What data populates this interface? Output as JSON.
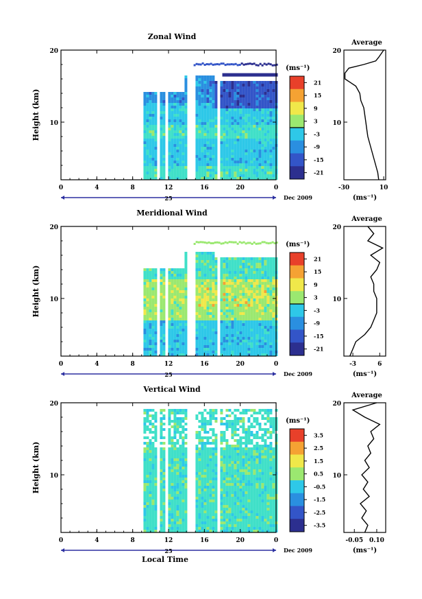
{
  "chart_data": [
    {
      "type": "heatmap",
      "title": "Zonal Wind",
      "ylabel": "Height (km)",
      "xlabel": "",
      "x_ticks": [
        "0",
        "4",
        "8",
        "12",
        "16",
        "20",
        "0"
      ],
      "y_ticks": [
        "10",
        "20"
      ],
      "date_labels": {
        "day": "25",
        "month_year": "Dec 2009"
      },
      "ylim": [
        2,
        20
      ],
      "xlim": [
        0,
        24
      ],
      "colorbar": {
        "unit_label": "(ms⁻¹)",
        "ticks": [
          "21",
          "15",
          "9",
          "3",
          "-3",
          "-9",
          "-15",
          "-21"
        ]
      },
      "average": {
        "title": "Average",
        "x_ticks": [
          "-30",
          "10"
        ],
        "y_ticks": [
          "10",
          "20"
        ],
        "unit_label": "(ms⁻¹)",
        "xlim": [
          -30,
          12
        ],
        "profile": [
          [
            5,
            2
          ],
          [
            4,
            3
          ],
          [
            2,
            4
          ],
          [
            0,
            5
          ],
          [
            -2,
            6
          ],
          [
            -4,
            7
          ],
          [
            -6,
            8
          ],
          [
            -7,
            9
          ],
          [
            -8,
            10
          ],
          [
            -9,
            11
          ],
          [
            -10,
            12
          ],
          [
            -13,
            13
          ],
          [
            -14,
            14
          ],
          [
            -18,
            15
          ],
          [
            -29,
            16
          ],
          [
            -29,
            16.8
          ],
          [
            -25,
            17.5
          ],
          [
            -10,
            18
          ],
          [
            2,
            18.5
          ],
          [
            5,
            19
          ],
          [
            10,
            20
          ]
        ]
      }
    },
    {
      "type": "heatmap",
      "title": "Meridional Wind",
      "ylabel": "Height (km)",
      "xlabel": "",
      "x_ticks": [
        "0",
        "4",
        "8",
        "12",
        "16",
        "20",
        "0"
      ],
      "y_ticks": [
        "10",
        "20"
      ],
      "date_labels": {
        "day": "25",
        "month_year": "Dec 2009"
      },
      "ylim": [
        2,
        20
      ],
      "xlim": [
        0,
        24
      ],
      "colorbar": {
        "unit_label": "(ms⁻¹)",
        "ticks": [
          "21",
          "15",
          "9",
          "3",
          "-3",
          "-9",
          "-15",
          "-21"
        ]
      },
      "average": {
        "title": "Average",
        "x_ticks": [
          "-3",
          "6"
        ],
        "y_ticks": [
          "10",
          "20"
        ],
        "unit_label": "(ms⁻¹)",
        "xlim": [
          -6,
          8
        ],
        "profile": [
          [
            -4,
            2
          ],
          [
            -3,
            3
          ],
          [
            -2,
            4
          ],
          [
            1,
            5
          ],
          [
            3,
            6
          ],
          [
            4,
            7
          ],
          [
            5,
            8
          ],
          [
            5,
            9
          ],
          [
            5,
            10
          ],
          [
            4,
            11
          ],
          [
            4,
            12
          ],
          [
            3,
            13
          ],
          [
            5,
            14
          ],
          [
            6,
            15
          ],
          [
            3,
            16
          ],
          [
            7,
            17
          ],
          [
            2,
            18
          ],
          [
            4,
            19
          ],
          [
            2,
            20
          ]
        ]
      }
    },
    {
      "type": "heatmap",
      "title": "Vertical Wind",
      "ylabel": "Height (km)",
      "xlabel": "Local Time",
      "x_ticks": [
        "0",
        "4",
        "8",
        "12",
        "16",
        "20",
        "0"
      ],
      "y_ticks": [
        "10",
        "20"
      ],
      "date_labels": {
        "day": "25",
        "month_year": "Dec 2009"
      },
      "ylim": [
        2,
        20
      ],
      "xlim": [
        0,
        24
      ],
      "colorbar": {
        "unit_label": "(ms⁻¹)",
        "ticks": [
          "3.5",
          "2.5",
          "1.5",
          "0.5",
          "-0.5",
          "-1.5",
          "-2.5",
          "-3.5"
        ]
      },
      "average": {
        "title": "Average",
        "x_ticks": [
          "-0.05",
          "0.10"
        ],
        "y_ticks": [
          "10",
          "20"
        ],
        "unit_label": "(ms⁻¹)",
        "xlim": [
          -0.12,
          0.16
        ],
        "profile": [
          [
            0.02,
            2
          ],
          [
            0.04,
            3
          ],
          [
            0.0,
            4
          ],
          [
            0.03,
            5
          ],
          [
            -0.01,
            6
          ],
          [
            0.05,
            7
          ],
          [
            0.01,
            8
          ],
          [
            0.04,
            9
          ],
          [
            0.0,
            10
          ],
          [
            0.05,
            11
          ],
          [
            0.02,
            12
          ],
          [
            0.06,
            13
          ],
          [
            0.04,
            14
          ],
          [
            0.08,
            15
          ],
          [
            0.06,
            16
          ],
          [
            0.12,
            17
          ],
          [
            0.02,
            18
          ],
          [
            -0.06,
            19
          ],
          [
            0.1,
            20
          ]
        ]
      }
    }
  ],
  "colors": {
    "scale": [
      "#2c2f8f",
      "#3355c8",
      "#2a8fe0",
      "#2ec8e8",
      "#40e0c8",
      "#9be870",
      "#f0e84a",
      "#f5a233",
      "#e8402a"
    ],
    "axis": "#000000",
    "time_arrow": "#2b2fa0"
  }
}
